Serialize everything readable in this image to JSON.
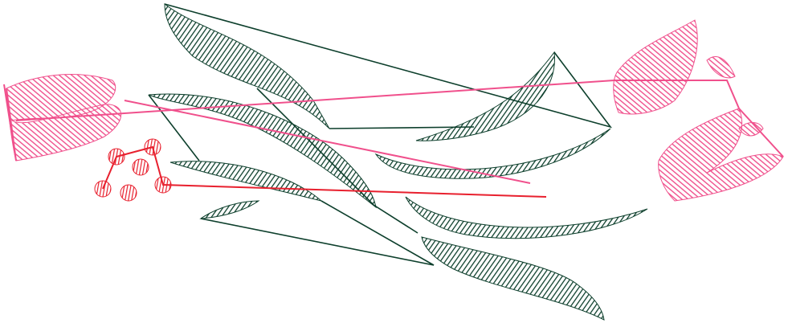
{
  "colors": {
    "background": "#ffffff",
    "leaf": "#0d3f2c",
    "flower_pink": "#f0508c",
    "flower_red": "#e8202e"
  },
  "elements": {
    "leaves": "embroidery-leaf",
    "pink_flowers": "embroidery-lips-flower",
    "red_berries": "embroidery-berry-cluster"
  }
}
